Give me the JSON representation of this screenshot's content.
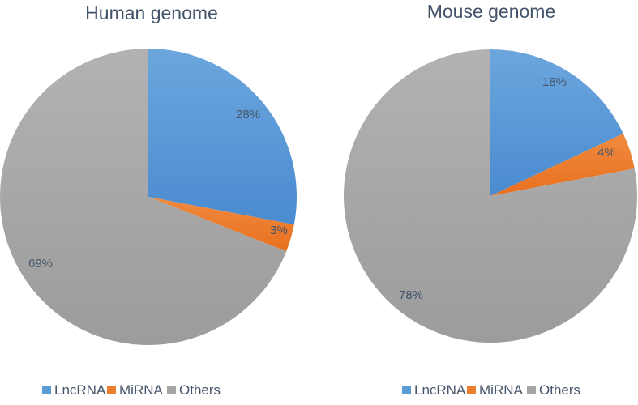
{
  "chart_data": [
    {
      "type": "pie",
      "title": "Human genome",
      "categories": [
        "LncRNA",
        "MiRNA",
        "Others"
      ],
      "values": [
        28,
        3,
        69
      ],
      "labels": [
        "28%",
        "3%",
        "69%"
      ],
      "colors": [
        "#5b9bd5",
        "#ed7d31",
        "#a5a5a5"
      ],
      "legend": "bottom"
    },
    {
      "type": "pie",
      "title": "Mouse genome",
      "categories": [
        "LncRNA",
        "MiRNA",
        "Others"
      ],
      "values": [
        18,
        4,
        78
      ],
      "labels": [
        "18%",
        "4%",
        "78%"
      ],
      "colors": [
        "#5b9bd5",
        "#ed7d31",
        "#a5a5a5"
      ],
      "legend": "bottom"
    }
  ]
}
